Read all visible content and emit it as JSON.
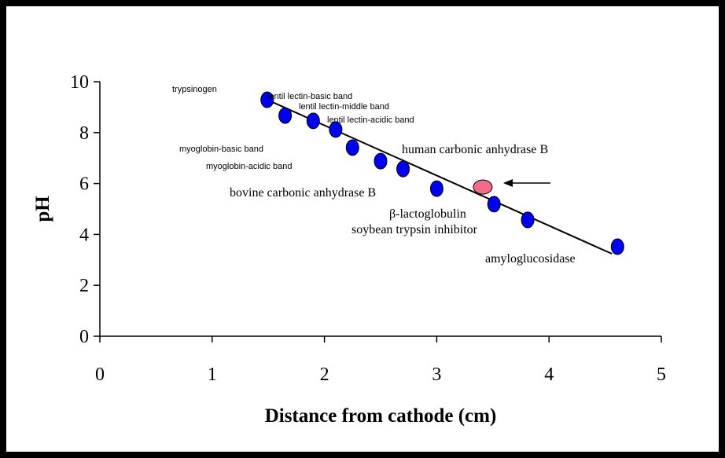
{
  "chart_data": {
    "type": "scatter",
    "x_label": "Distance from cathode (cm)",
    "y_label": "pH",
    "xlim": [
      0,
      5
    ],
    "xticks": [
      0,
      1,
      2,
      3,
      4,
      5
    ],
    "ylim": [
      0,
      10
    ],
    "yticks": [
      0,
      2,
      4,
      6,
      8,
      10
    ],
    "points": {
      "color": "#0000ee",
      "x": [
        1.49,
        1.65,
        1.9,
        2.1,
        2.25,
        2.5,
        2.7,
        3.0,
        3.51,
        3.81,
        4.61
      ],
      "y": [
        9.29,
        8.67,
        8.46,
        8.12,
        7.41,
        6.88,
        6.57,
        5.8,
        5.19,
        4.57,
        3.52
      ]
    },
    "unknown": {
      "color": "#f06b8a",
      "x": 3.41,
      "y": 5.86
    },
    "fit_line": {
      "color": "#000000",
      "x": [
        1.49,
        4.56
      ],
      "y": [
        9.29,
        3.24
      ]
    },
    "annotations": [
      "trypsinogen",
      "lentil lectin-basic band",
      "lentil lectin-middle band",
      "lentil lectin-acidic band",
      "myoglobin-basic band",
      "myoglobin-acidic band",
      "human carbonic anhydrase B",
      "bovine carbonic anhydrase B",
      "β-lactoglobulin",
      "soybean trypsin inhibitor",
      "amyloglucosidase"
    ]
  }
}
